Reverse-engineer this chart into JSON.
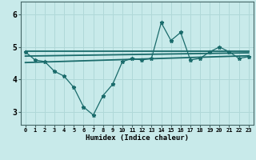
{
  "xlabel": "Humidex (Indice chaleur)",
  "bg_color": "#c8eaea",
  "line_color": "#1a6b6b",
  "grid_color": "#b0d8d8",
  "x_ticks": [
    0,
    1,
    2,
    3,
    4,
    5,
    6,
    7,
    8,
    9,
    10,
    11,
    12,
    13,
    14,
    15,
    16,
    17,
    18,
    19,
    20,
    21,
    22,
    23
  ],
  "y_ticks": [
    3,
    4,
    5,
    6
  ],
  "ylim": [
    2.6,
    6.4
  ],
  "xlim": [
    -0.5,
    23.5
  ],
  "series1_x": [
    0,
    1,
    2,
    3,
    4,
    5,
    6,
    7,
    8,
    9,
    10,
    11,
    12,
    13,
    14,
    15,
    16,
    17,
    18,
    19,
    20,
    21,
    22,
    23
  ],
  "series1_y": [
    4.85,
    4.6,
    4.55,
    4.25,
    4.1,
    3.75,
    3.15,
    2.9,
    3.5,
    3.85,
    4.55,
    4.65,
    4.6,
    4.65,
    5.75,
    5.2,
    5.45,
    4.6,
    4.65,
    4.85,
    5.0,
    4.85,
    4.65,
    4.7
  ],
  "trend1_y0": 4.88,
  "trend1_y1": 4.88,
  "trend2_y0": 4.72,
  "trend2_y1": 4.82,
  "trend3_y0": 4.52,
  "trend3_y1": 4.73
}
